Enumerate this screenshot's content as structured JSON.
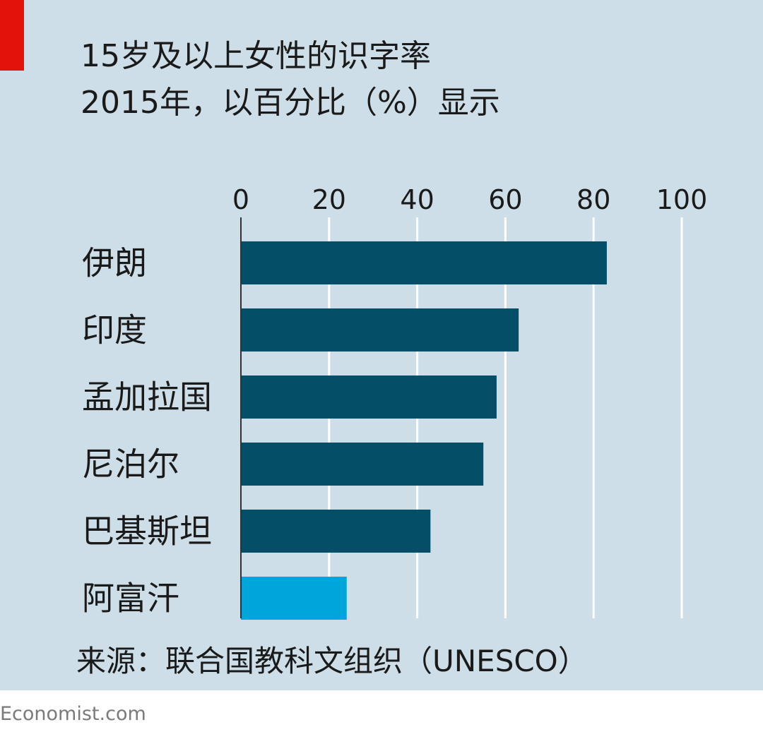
{
  "title": "15岁及以上女性的识字率",
  "subtitle": "2015年，以百分比（%）显示",
  "source": "来源：联合国教科文组织（UNESCO）",
  "brand": "Economist.com",
  "colors": {
    "accent": "#e3120b",
    "panel": "#cddee8",
    "bar": "#044e68",
    "highlight": "#00a5dc"
  },
  "chart_data": {
    "type": "bar",
    "orientation": "horizontal",
    "categories": [
      "伊朗",
      "印度",
      "孟加拉国",
      "尼泊尔",
      "巴基斯坦",
      "阿富汗"
    ],
    "values": [
      83,
      63,
      58,
      55,
      43,
      24
    ],
    "highlight_index": 5,
    "xlim": [
      0,
      100
    ],
    "xticks": [
      0,
      20,
      40,
      60,
      80,
      100
    ],
    "x_tick_position": "top",
    "grid": true
  }
}
